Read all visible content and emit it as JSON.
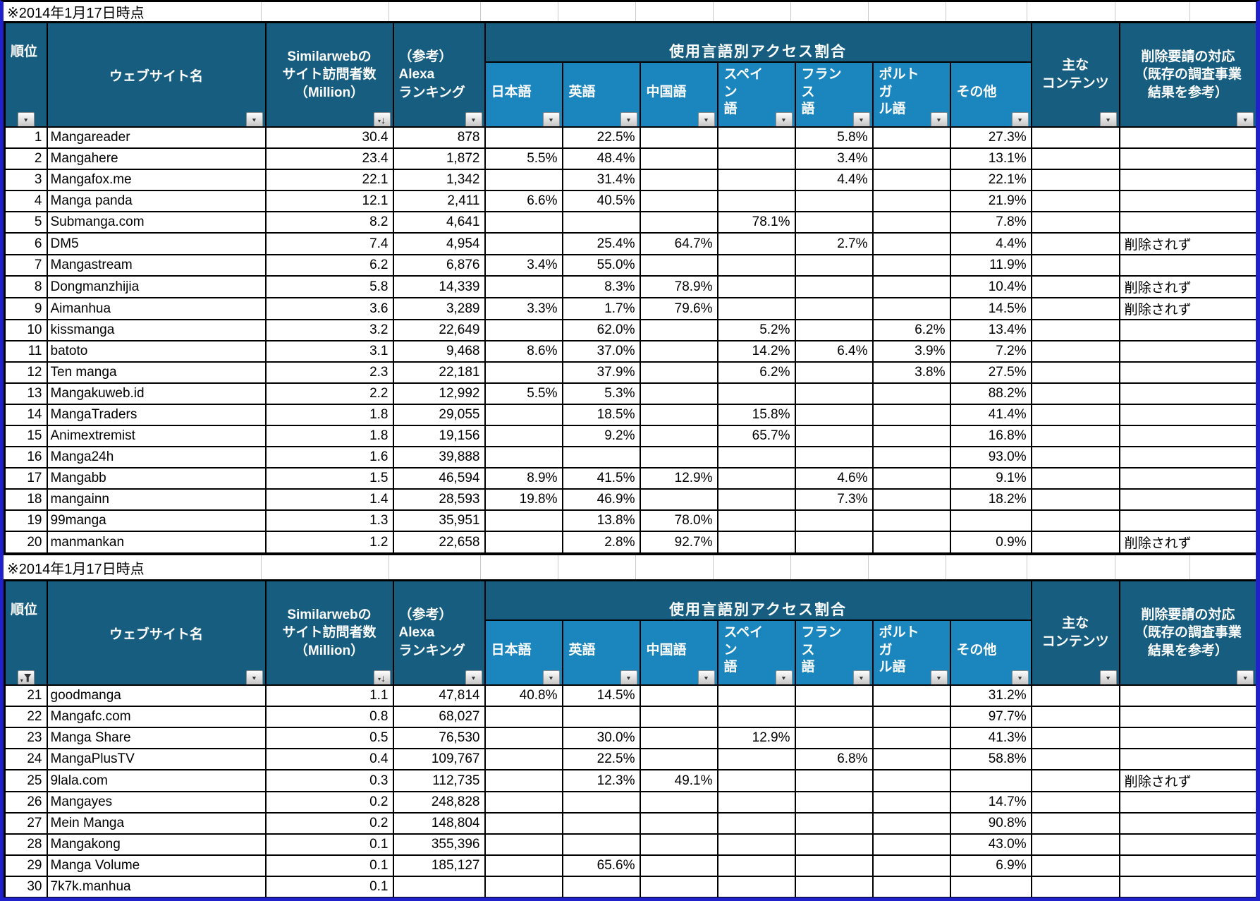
{
  "note_label": "※2014年1月17日時点",
  "colors": {
    "header_dark": "#175d80",
    "header_light": "#1b86be",
    "outer_border_blue": "#2121cc",
    "grid_black": "#000000"
  },
  "icons": {
    "filter": "▼",
    "sort_descending": "↓",
    "small_triangle": "▾"
  },
  "header": {
    "rank": "順位",
    "website": "ウェブサイト名",
    "visitors": "Similarwebの\nサイト訪問者数\n（Million）",
    "alexa": "（参考）\nAlexa\nランキング",
    "lang_group": "使用言語別アクセス割合",
    "langs": [
      "日本語",
      "英語",
      "中国語",
      "スペイン\n語",
      "フランス\n語",
      "ポルトガ\nル語",
      "その他"
    ],
    "content": "主な\nコンテンツ",
    "takedown": "削除要請の対応\n（既存の調査事業\n結果を参考）"
  },
  "tables": [
    {
      "rank_filter_state": "none",
      "rows": [
        {
          "rank": "1",
          "name": "Mangareader",
          "visitors": "30.4",
          "alexa": "878",
          "ja": "",
          "en": "22.5%",
          "zh": "",
          "es": "",
          "fr": "5.8%",
          "pt": "",
          "other": "27.3%",
          "content": "",
          "takedown": ""
        },
        {
          "rank": "2",
          "name": "Mangahere",
          "visitors": "23.4",
          "alexa": "1,872",
          "ja": "5.5%",
          "en": "48.4%",
          "zh": "",
          "es": "",
          "fr": "3.4%",
          "pt": "",
          "other": "13.1%",
          "content": "",
          "takedown": ""
        },
        {
          "rank": "3",
          "name": "Mangafox.me",
          "visitors": "22.1",
          "alexa": "1,342",
          "ja": "",
          "en": "31.4%",
          "zh": "",
          "es": "",
          "fr": "4.4%",
          "pt": "",
          "other": "22.1%",
          "content": "",
          "takedown": ""
        },
        {
          "rank": "4",
          "name": "Manga panda",
          "visitors": "12.1",
          "alexa": "2,411",
          "ja": "6.6%",
          "en": "40.5%",
          "zh": "",
          "es": "",
          "fr": "",
          "pt": "",
          "other": "21.9%",
          "content": "",
          "takedown": ""
        },
        {
          "rank": "5",
          "name": "Submanga.com",
          "visitors": "8.2",
          "alexa": "4,641",
          "ja": "",
          "en": "",
          "zh": "",
          "es": "78.1%",
          "fr": "",
          "pt": "",
          "other": "7.8%",
          "content": "",
          "takedown": ""
        },
        {
          "rank": "6",
          "name": "DM5",
          "visitors": "7.4",
          "alexa": "4,954",
          "ja": "",
          "en": "25.4%",
          "zh": "64.7%",
          "es": "",
          "fr": "2.7%",
          "pt": "",
          "other": "4.4%",
          "content": "",
          "takedown": "削除されず"
        },
        {
          "rank": "7",
          "name": "Mangastream",
          "visitors": "6.2",
          "alexa": "6,876",
          "ja": "3.4%",
          "en": "55.0%",
          "zh": "",
          "es": "",
          "fr": "",
          "pt": "",
          "other": "11.9%",
          "content": "",
          "takedown": ""
        },
        {
          "rank": "8",
          "name": "Dongmanzhijia",
          "visitors": "5.8",
          "alexa": "14,339",
          "ja": "",
          "en": "8.3%",
          "zh": "78.9%",
          "es": "",
          "fr": "",
          "pt": "",
          "other": "10.4%",
          "content": "",
          "takedown": "削除されず"
        },
        {
          "rank": "9",
          "name": "Aimanhua",
          "visitors": "3.6",
          "alexa": "3,289",
          "ja": "3.3%",
          "en": "1.7%",
          "zh": "79.6%",
          "es": "",
          "fr": "",
          "pt": "",
          "other": "14.5%",
          "content": "",
          "takedown": "削除されず"
        },
        {
          "rank": "10",
          "name": "kissmanga",
          "visitors": "3.2",
          "alexa": "22,649",
          "ja": "",
          "en": "62.0%",
          "zh": "",
          "es": "5.2%",
          "fr": "",
          "pt": "6.2%",
          "other": "13.4%",
          "content": "",
          "takedown": ""
        },
        {
          "rank": "11",
          "name": "batoto",
          "visitors": "3.1",
          "alexa": "9,468",
          "ja": "8.6%",
          "en": "37.0%",
          "zh": "",
          "es": "14.2%",
          "fr": "6.4%",
          "pt": "3.9%",
          "other": "7.2%",
          "content": "",
          "takedown": ""
        },
        {
          "rank": "12",
          "name": "Ten manga",
          "visitors": "2.3",
          "alexa": "22,181",
          "ja": "",
          "en": "37.9%",
          "zh": "",
          "es": "6.2%",
          "fr": "",
          "pt": "3.8%",
          "other": "27.5%",
          "content": "",
          "takedown": ""
        },
        {
          "rank": "13",
          "name": "Mangakuweb.id",
          "visitors": "2.2",
          "alexa": "12,992",
          "ja": "5.5%",
          "en": "5.3%",
          "zh": "",
          "es": "",
          "fr": "",
          "pt": "",
          "other": "88.2%",
          "content": "",
          "takedown": ""
        },
        {
          "rank": "14",
          "name": "MangaTraders",
          "visitors": "1.8",
          "alexa": "29,055",
          "ja": "",
          "en": "18.5%",
          "zh": "",
          "es": "15.8%",
          "fr": "",
          "pt": "",
          "other": "41.4%",
          "content": "",
          "takedown": ""
        },
        {
          "rank": "15",
          "name": "Animextremist",
          "visitors": "1.8",
          "alexa": "19,156",
          "ja": "",
          "en": "9.2%",
          "zh": "",
          "es": "65.7%",
          "fr": "",
          "pt": "",
          "other": "16.8%",
          "content": "",
          "takedown": ""
        },
        {
          "rank": "16",
          "name": "Manga24h",
          "visitors": "1.6",
          "alexa": "39,888",
          "ja": "",
          "en": "",
          "zh": "",
          "es": "",
          "fr": "",
          "pt": "",
          "other": "93.0%",
          "content": "",
          "takedown": ""
        },
        {
          "rank": "17",
          "name": "Mangabb",
          "visitors": "1.5",
          "alexa": "46,594",
          "ja": "8.9%",
          "en": "41.5%",
          "zh": "12.9%",
          "es": "",
          "fr": "4.6%",
          "pt": "",
          "other": "9.1%",
          "content": "",
          "takedown": ""
        },
        {
          "rank": "18",
          "name": "mangainn",
          "visitors": "1.4",
          "alexa": "28,593",
          "ja": "19.8%",
          "en": "46.9%",
          "zh": "",
          "es": "",
          "fr": "7.3%",
          "pt": "",
          "other": "18.2%",
          "content": "",
          "takedown": ""
        },
        {
          "rank": "19",
          "name": "99manga",
          "visitors": "1.3",
          "alexa": "35,951",
          "ja": "",
          "en": "13.8%",
          "zh": "78.0%",
          "es": "",
          "fr": "",
          "pt": "",
          "other": "",
          "content": "",
          "takedown": ""
        },
        {
          "rank": "20",
          "name": "manmankan",
          "visitors": "1.2",
          "alexa": "22,658",
          "ja": "",
          "en": "2.8%",
          "zh": "92.7%",
          "es": "",
          "fr": "",
          "pt": "",
          "other": "0.9%",
          "content": "",
          "takedown": "削除されず"
        }
      ]
    },
    {
      "rank_filter_state": "filtered",
      "rows": [
        {
          "rank": "21",
          "name": "goodmanga",
          "visitors": "1.1",
          "alexa": "47,814",
          "ja": "40.8%",
          "en": "14.5%",
          "zh": "",
          "es": "",
          "fr": "",
          "pt": "",
          "other": "31.2%",
          "content": "",
          "takedown": ""
        },
        {
          "rank": "22",
          "name": "Mangafc.com",
          "visitors": "0.8",
          "alexa": "68,027",
          "ja": "",
          "en": "",
          "zh": "",
          "es": "",
          "fr": "",
          "pt": "",
          "other": "97.7%",
          "content": "",
          "takedown": ""
        },
        {
          "rank": "23",
          "name": "Manga Share",
          "visitors": "0.5",
          "alexa": "76,530",
          "ja": "",
          "en": "30.0%",
          "zh": "",
          "es": "12.9%",
          "fr": "",
          "pt": "",
          "other": "41.3%",
          "content": "",
          "takedown": ""
        },
        {
          "rank": "24",
          "name": "MangaPlusTV",
          "visitors": "0.4",
          "alexa": "109,767",
          "ja": "",
          "en": "22.5%",
          "zh": "",
          "es": "",
          "fr": "6.8%",
          "pt": "",
          "other": "58.8%",
          "content": "",
          "takedown": ""
        },
        {
          "rank": "25",
          "name": "9lala.com",
          "visitors": "0.3",
          "alexa": "112,735",
          "ja": "",
          "en": "12.3%",
          "zh": "49.1%",
          "es": "",
          "fr": "",
          "pt": "",
          "other": "",
          "content": "",
          "takedown": "削除されず"
        },
        {
          "rank": "26",
          "name": "Mangayes",
          "visitors": "0.2",
          "alexa": "248,828",
          "ja": "",
          "en": "",
          "zh": "",
          "es": "",
          "fr": "",
          "pt": "",
          "other": "14.7%",
          "content": "",
          "takedown": ""
        },
        {
          "rank": "27",
          "name": "Mein Manga",
          "visitors": "0.2",
          "alexa": "148,804",
          "ja": "",
          "en": "",
          "zh": "",
          "es": "",
          "fr": "",
          "pt": "",
          "other": "90.8%",
          "content": "",
          "takedown": ""
        },
        {
          "rank": "28",
          "name": "Mangakong",
          "visitors": "0.1",
          "alexa": "355,396",
          "ja": "",
          "en": "",
          "zh": "",
          "es": "",
          "fr": "",
          "pt": "",
          "other": "43.0%",
          "content": "",
          "takedown": ""
        },
        {
          "rank": "29",
          "name": "Manga Volume",
          "visitors": "0.1",
          "alexa": "185,127",
          "ja": "",
          "en": "65.6%",
          "zh": "",
          "es": "",
          "fr": "",
          "pt": "",
          "other": "6.9%",
          "content": "",
          "takedown": ""
        },
        {
          "rank": "30",
          "name": "7k7k.manhua",
          "visitors": "0.1",
          "alexa": "",
          "ja": "",
          "en": "",
          "zh": "",
          "es": "",
          "fr": "",
          "pt": "",
          "other": "",
          "content": "",
          "takedown": ""
        }
      ]
    }
  ]
}
